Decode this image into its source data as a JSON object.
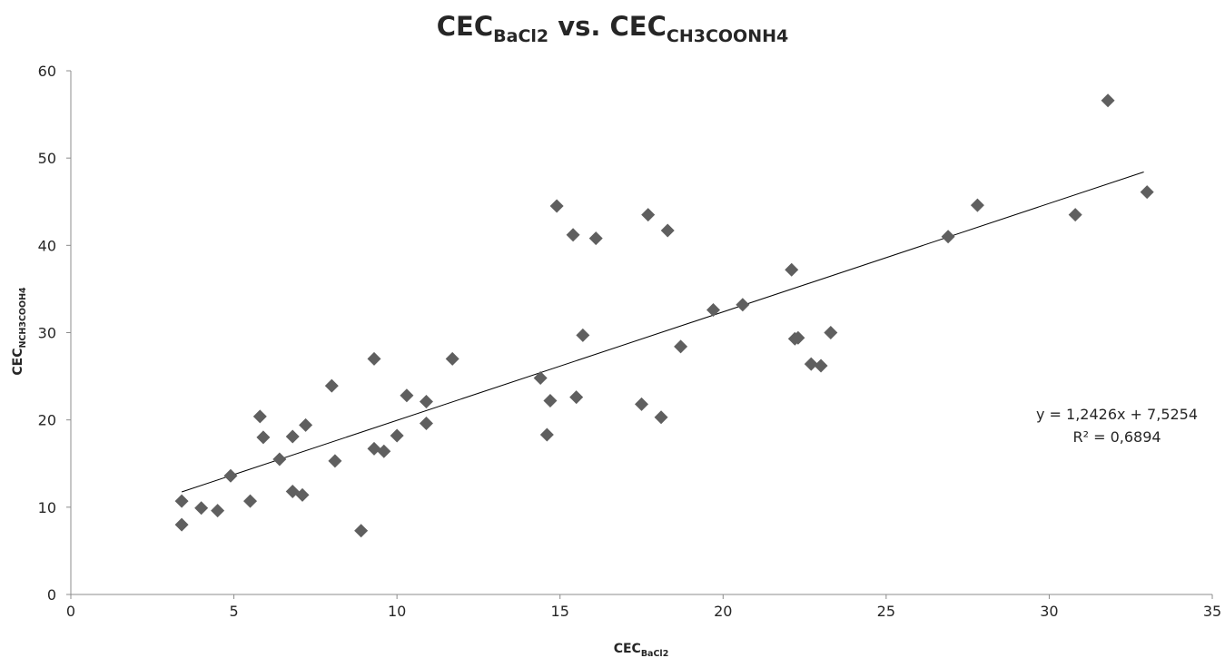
{
  "chart_data": {
    "type": "scatter",
    "title": {
      "main": "CEC",
      "sub1": "BaCl2",
      "mid": " vs. CEC",
      "sub2": "CH3COONH4"
    },
    "xlabel": {
      "main": "CEC",
      "sub": "BaCl2"
    },
    "ylabel": {
      "main": "CEC",
      "sub": "NCH3COOH4"
    },
    "xlim": [
      0,
      35
    ],
    "ylim": [
      0,
      60
    ],
    "x_ticks": [
      0,
      5,
      10,
      15,
      20,
      25,
      30,
      35
    ],
    "y_ticks": [
      0,
      10,
      20,
      30,
      40,
      50,
      60
    ],
    "grid": false,
    "legend": "none",
    "marker_color": "#5f5f5f",
    "series": [
      {
        "points": [
          [
            3.4,
            10.7
          ],
          [
            3.4,
            8.0
          ],
          [
            4.0,
            9.9
          ],
          [
            4.5,
            9.6
          ],
          [
            4.9,
            13.6
          ],
          [
            5.5,
            10.7
          ],
          [
            5.8,
            20.4
          ],
          [
            5.9,
            18.0
          ],
          [
            6.4,
            15.5
          ],
          [
            6.8,
            11.8
          ],
          [
            6.8,
            18.1
          ],
          [
            7.1,
            11.4
          ],
          [
            7.2,
            19.4
          ],
          [
            8.0,
            23.9
          ],
          [
            8.1,
            15.3
          ],
          [
            8.9,
            7.3
          ],
          [
            9.3,
            16.7
          ],
          [
            9.3,
            27.0
          ],
          [
            9.6,
            16.4
          ],
          [
            10.0,
            18.2
          ],
          [
            10.3,
            22.8
          ],
          [
            10.9,
            22.1
          ],
          [
            10.9,
            19.6
          ],
          [
            11.7,
            27.0
          ],
          [
            14.4,
            24.8
          ],
          [
            14.6,
            18.3
          ],
          [
            14.7,
            22.2
          ],
          [
            14.9,
            44.5
          ],
          [
            15.4,
            41.2
          ],
          [
            15.5,
            22.6
          ],
          [
            15.7,
            29.7
          ],
          [
            16.1,
            40.8
          ],
          [
            17.5,
            21.8
          ],
          [
            17.7,
            43.5
          ],
          [
            18.1,
            20.3
          ],
          [
            18.3,
            41.7
          ],
          [
            18.7,
            28.4
          ],
          [
            19.7,
            32.6
          ],
          [
            20.6,
            33.2
          ],
          [
            22.1,
            37.2
          ],
          [
            22.2,
            29.3
          ],
          [
            22.3,
            29.4
          ],
          [
            22.7,
            26.4
          ],
          [
            23.0,
            26.2
          ],
          [
            23.3,
            30.0
          ],
          [
            26.9,
            41.0
          ],
          [
            27.8,
            44.6
          ],
          [
            30.8,
            43.5
          ],
          [
            31.8,
            56.6
          ],
          [
            33.0,
            46.1
          ]
        ]
      }
    ],
    "trendline": {
      "slope": 1.2426,
      "intercept": 7.5254,
      "x_range": [
        3.4,
        32.9
      ],
      "equation": "y = 1,2426x + 7,5254",
      "r2": "R² = 0,6894"
    }
  }
}
